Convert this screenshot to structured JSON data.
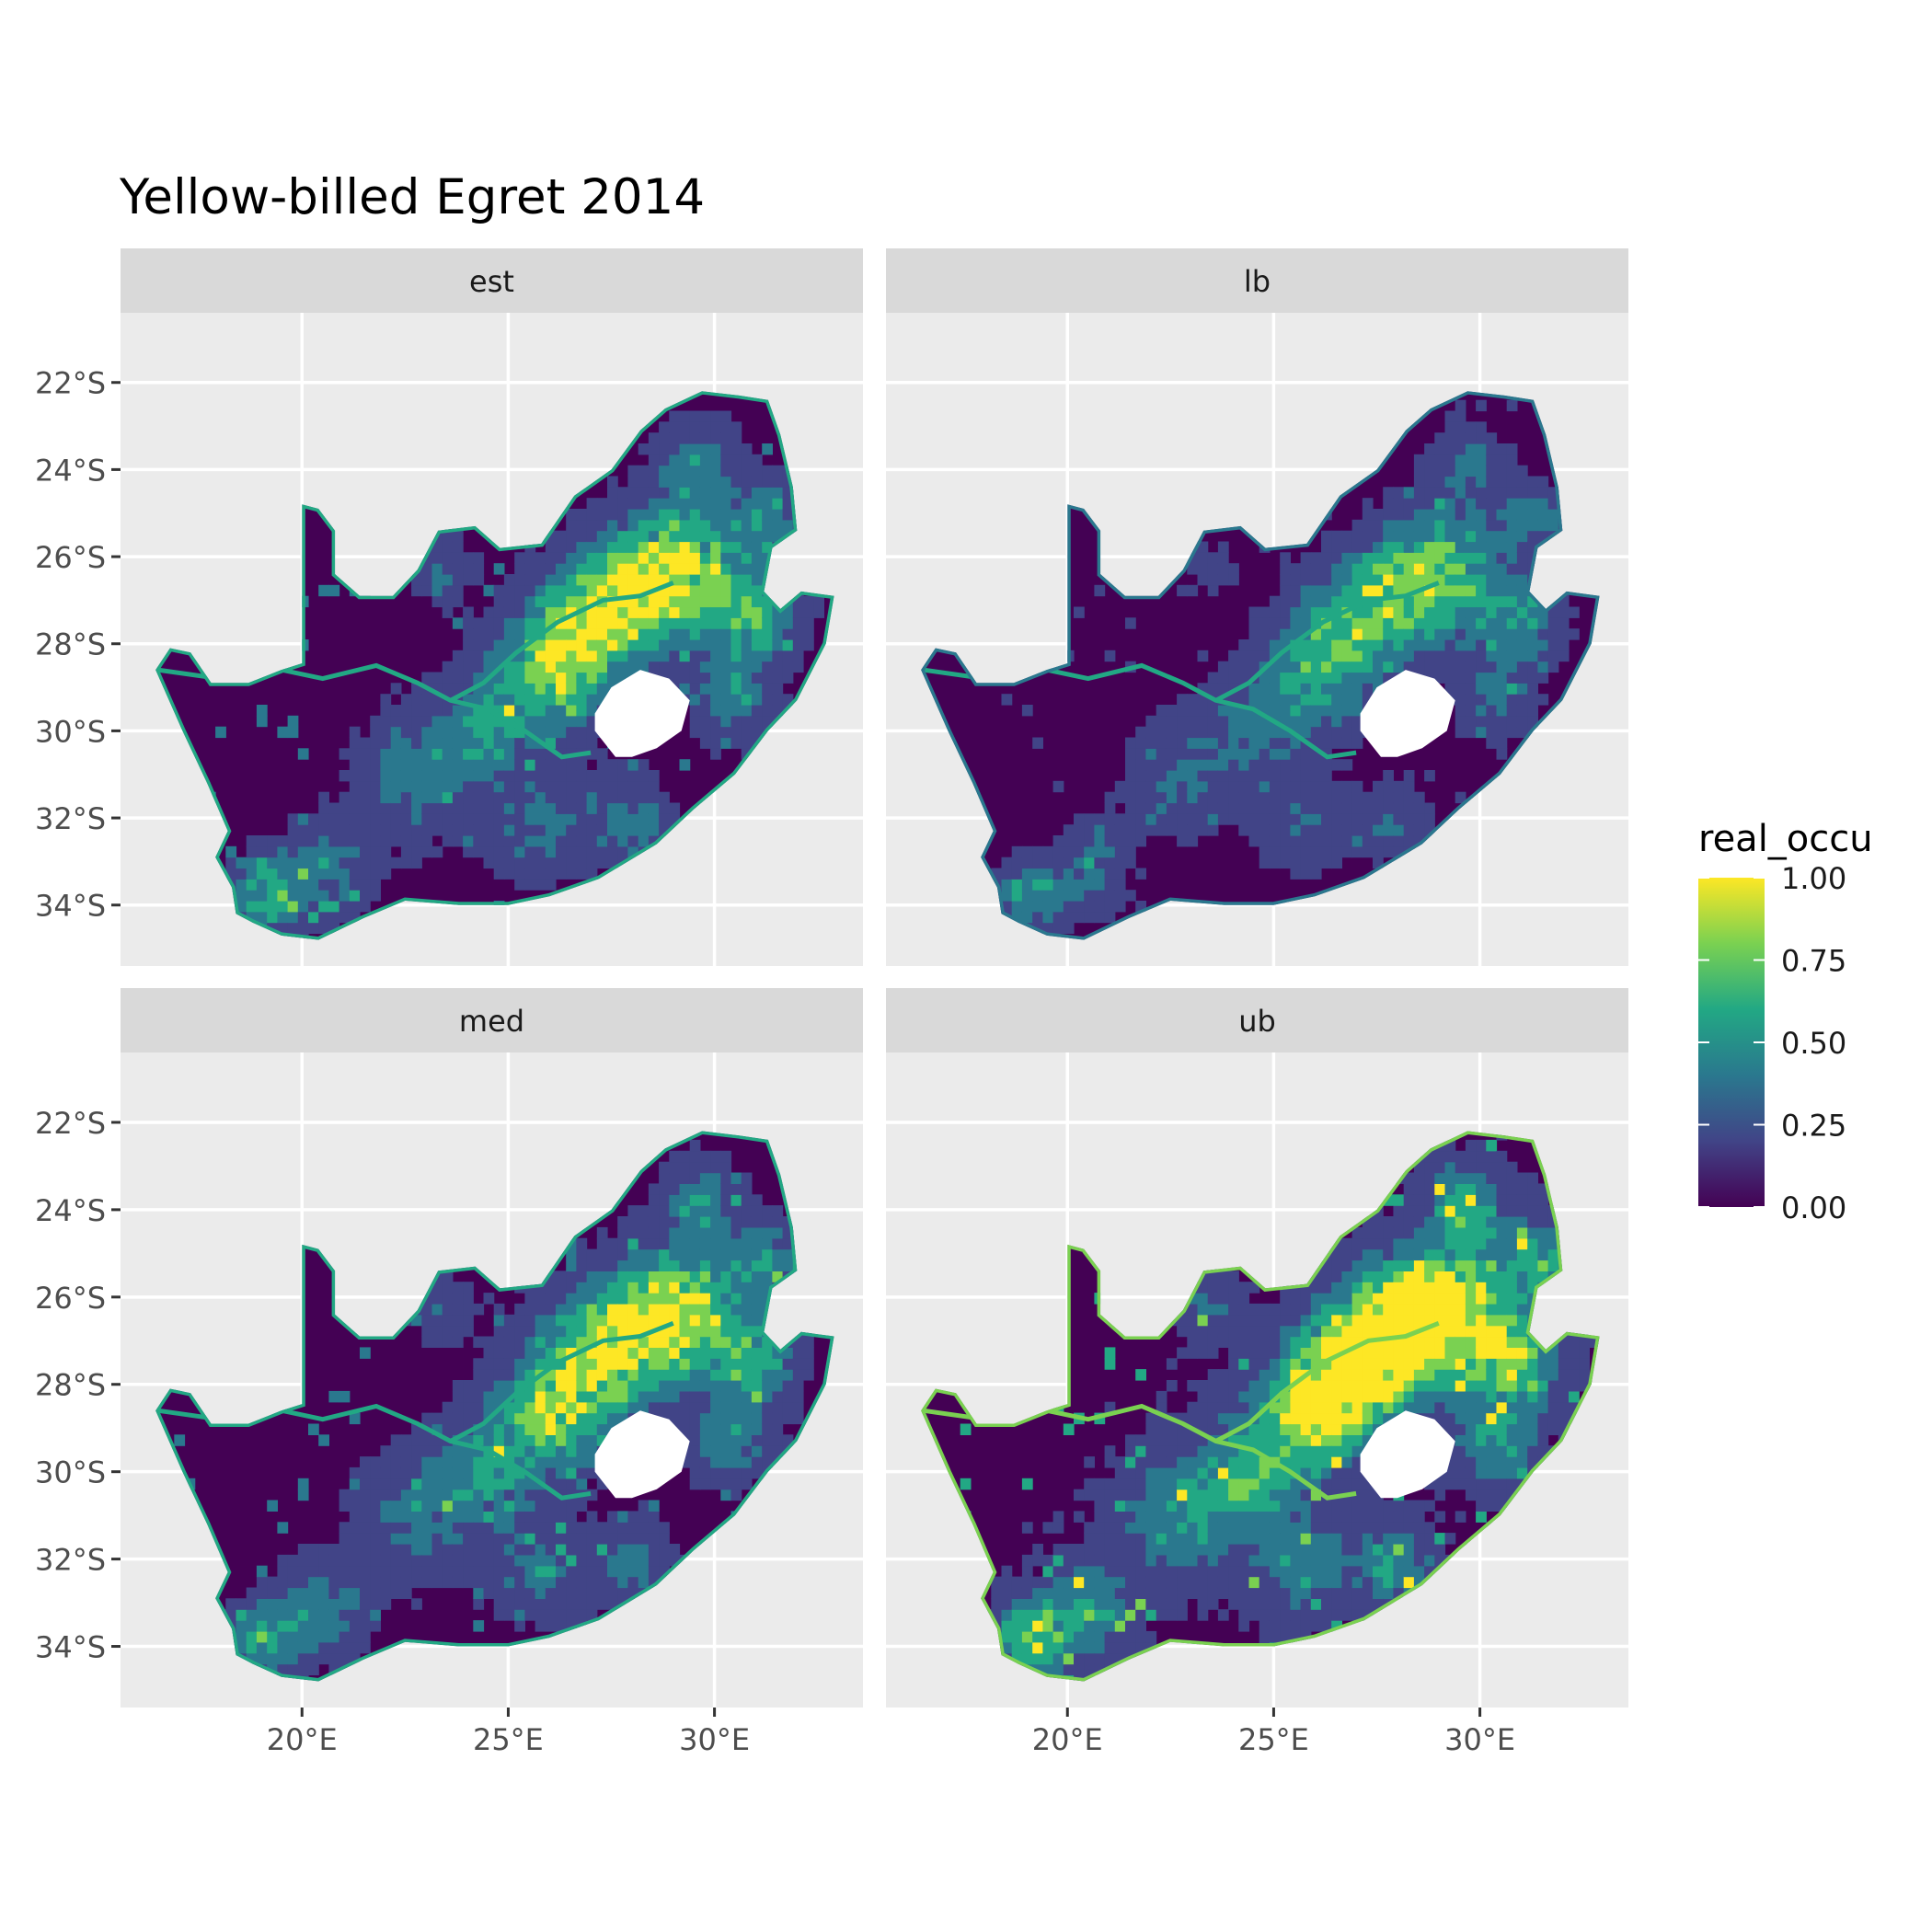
{
  "title": "Yellow-billed Egret 2014",
  "panels": [
    {
      "label": "est",
      "intensity": 0.52
    },
    {
      "label": "lb",
      "intensity": 0.3
    },
    {
      "label": "med",
      "intensity": 0.5
    },
    {
      "label": "ub",
      "intensity": 0.78
    }
  ],
  "x_axis": {
    "ticks": [
      "20°E",
      "25°E",
      "30°E"
    ],
    "values": [
      20,
      25,
      30
    ],
    "range": [
      15.6,
      33.6
    ]
  },
  "y_axis": {
    "ticks": [
      "22°S",
      "24°S",
      "26°S",
      "28°S",
      "30°S",
      "32°S",
      "34°S"
    ],
    "values": [
      -22,
      -24,
      -26,
      -28,
      -30,
      -32,
      -34
    ],
    "range": [
      -35.4,
      -20.4
    ]
  },
  "legend": {
    "title": "real_occu",
    "ticks": [
      "1.00",
      "0.75",
      "0.50",
      "0.25",
      "0.00"
    ],
    "tick_values": [
      1.0,
      0.75,
      0.5,
      0.25,
      0.0
    ],
    "colors": [
      "#fde725",
      "#7ad151",
      "#22a884",
      "#2a788e",
      "#414487",
      "#440154"
    ]
  },
  "colors": {
    "panel_bg": "#ebebeb",
    "strip_bg": "#d9d9d9",
    "grid": "#ffffff",
    "text": "#1a1a1a",
    "axis_text": "#4d4d4d"
  }
}
